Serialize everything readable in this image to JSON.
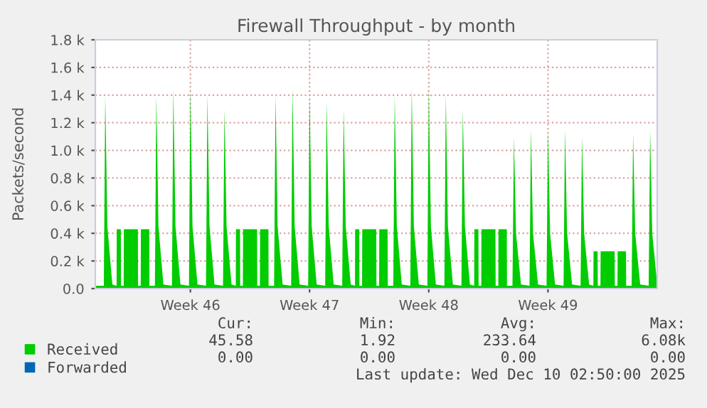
{
  "chart_data": {
    "type": "area",
    "title": "Firewall Throughput - by month",
    "ylabel": "Packets/second",
    "xlim": [
      "2025-11-07",
      "2025-12-10"
    ],
    "xticks": [
      {
        "value": "2025-11-12T14:00",
        "label": "Week 46"
      },
      {
        "value": "2025-11-19T14:00",
        "label": "Week 47"
      },
      {
        "value": "2025-11-26T14:00",
        "label": "Week 48"
      },
      {
        "value": "2025-12-03T14:00",
        "label": "Week 49"
      }
    ],
    "ylim": [
      0,
      1.8
    ],
    "yticks": [
      {
        "value": 0,
        "label": "0.0"
      },
      {
        "value": 0.2,
        "label": "0.2 k"
      },
      {
        "value": 0.4,
        "label": "0.4 k"
      },
      {
        "value": 0.6,
        "label": "0.6 k"
      },
      {
        "value": 0.8,
        "label": "0.8 k"
      },
      {
        "value": 1.0,
        "label": "1.0 k"
      },
      {
        "value": 1.2,
        "label": "1.2 k"
      },
      {
        "value": 1.4,
        "label": "1.4 k"
      },
      {
        "value": 1.6,
        "label": "1.6 k"
      },
      {
        "value": 1.8,
        "label": "1.8 k"
      }
    ],
    "grid": true,
    "legend": "bottom",
    "series": [
      {
        "name": "Received",
        "color": "#00cc00",
        "x": [
          "2025-11-07T00:00",
          "2025-11-07T12:00",
          "2025-11-07T14:00",
          "2025-11-07T17:00",
          "2025-11-08T00:00",
          "2025-11-08T06:00",
          "2025-11-08T06:15",
          "2025-11-08T12:00",
          "2025-11-08T12:15",
          "2025-11-08T16:00",
          "2025-11-08T16:15",
          "2025-11-09T12:00",
          "2025-11-09T12:15",
          "2025-11-09T16:00",
          "2025-11-09T16:15",
          "2025-11-10T04:00",
          "2025-11-10T04:15",
          "2025-11-10T12:00",
          "2025-11-10T14:00",
          "2025-11-10T17:00",
          "2025-11-11T00:00",
          "2025-11-11T12:00",
          "2025-11-11T14:00",
          "2025-11-11T17:00",
          "2025-11-12T00:00",
          "2025-11-12T12:00",
          "2025-11-12T14:00",
          "2025-11-12T17:00",
          "2025-11-13T00:00",
          "2025-11-13T12:00",
          "2025-11-13T14:00",
          "2025-11-13T17:00",
          "2025-11-14T00:00",
          "2025-11-14T12:00",
          "2025-11-14T14:00",
          "2025-11-14T17:00",
          "2025-11-15T00:00",
          "2025-11-15T06:00",
          "2025-11-15T06:15",
          "2025-11-15T12:00",
          "2025-11-15T12:15",
          "2025-11-15T16:00",
          "2025-11-15T16:15",
          "2025-11-16T12:00",
          "2025-11-16T12:15",
          "2025-11-16T16:00",
          "2025-11-16T16:15",
          "2025-11-17T04:00",
          "2025-11-17T04:15",
          "2025-11-17T12:00",
          "2025-11-17T14:00",
          "2025-11-17T17:00",
          "2025-11-18T00:00",
          "2025-11-18T12:00",
          "2025-11-18T14:00",
          "2025-11-18T17:00",
          "2025-11-19T00:00",
          "2025-11-19T12:00",
          "2025-11-19T14:00",
          "2025-11-19T17:00",
          "2025-11-20T00:00",
          "2025-11-20T12:00",
          "2025-11-20T14:00",
          "2025-11-20T17:00",
          "2025-11-21T00:00",
          "2025-11-21T12:00",
          "2025-11-21T14:00",
          "2025-11-21T17:00",
          "2025-11-22T00:00",
          "2025-11-22T06:00",
          "2025-11-22T06:15",
          "2025-11-22T12:00",
          "2025-11-22T12:15",
          "2025-11-22T16:00",
          "2025-11-22T16:15",
          "2025-11-23T12:00",
          "2025-11-23T12:15",
          "2025-11-23T16:00",
          "2025-11-23T16:15",
          "2025-11-24T04:00",
          "2025-11-24T04:15",
          "2025-11-24T12:00",
          "2025-11-24T14:00",
          "2025-11-24T17:00",
          "2025-11-25T00:00",
          "2025-11-25T12:00",
          "2025-11-25T14:00",
          "2025-11-25T17:00",
          "2025-11-26T00:00",
          "2025-11-26T12:00",
          "2025-11-26T14:00",
          "2025-11-26T17:00",
          "2025-11-27T00:00",
          "2025-11-27T12:00",
          "2025-11-27T14:00",
          "2025-11-27T17:00",
          "2025-11-28T00:00",
          "2025-11-28T12:00",
          "2025-11-28T14:00",
          "2025-11-28T17:00",
          "2025-11-29T00:00",
          "2025-11-29T06:00",
          "2025-11-29T06:15",
          "2025-11-29T12:00",
          "2025-11-29T12:15",
          "2025-11-29T16:00",
          "2025-11-29T16:15",
          "2025-11-30T12:00",
          "2025-11-30T12:15",
          "2025-11-30T16:00",
          "2025-11-30T16:15",
          "2025-12-01T04:00",
          "2025-12-01T04:15",
          "2025-12-01T12:00",
          "2025-12-01T14:00",
          "2025-12-01T17:00",
          "2025-12-02T00:00",
          "2025-12-02T12:00",
          "2025-12-02T14:00",
          "2025-12-02T17:00",
          "2025-12-03T00:00",
          "2025-12-03T12:00",
          "2025-12-03T14:00",
          "2025-12-03T17:00",
          "2025-12-04T00:00",
          "2025-12-04T12:00",
          "2025-12-04T14:00",
          "2025-12-04T17:00",
          "2025-12-05T00:00",
          "2025-12-05T12:00",
          "2025-12-05T14:00",
          "2025-12-05T17:00",
          "2025-12-06T00:00",
          "2025-12-06T06:00",
          "2025-12-06T06:15",
          "2025-12-06T12:00",
          "2025-12-06T12:15",
          "2025-12-06T16:00",
          "2025-12-06T16:15",
          "2025-12-07T12:00",
          "2025-12-07T12:15",
          "2025-12-07T16:00",
          "2025-12-07T16:15",
          "2025-12-08T04:00",
          "2025-12-08T04:15",
          "2025-12-08T12:00",
          "2025-12-08T14:00",
          "2025-12-08T17:00",
          "2025-12-09T00:00",
          "2025-12-09T12:00",
          "2025-12-09T14:00",
          "2025-12-09T17:00",
          "2025-12-10T00:00"
        ],
        "values": [
          0.02,
          0.02,
          1.4,
          0.45,
          0.03,
          0.02,
          0.43,
          0.43,
          0.02,
          0.02,
          0.43,
          0.43,
          0.02,
          0.02,
          0.43,
          0.43,
          0.02,
          0.02,
          1.4,
          0.45,
          0.03,
          0.02,
          1.45,
          0.45,
          0.03,
          0.02,
          1.45,
          0.45,
          0.03,
          0.02,
          1.4,
          0.45,
          0.03,
          0.02,
          1.3,
          0.45,
          0.03,
          0.02,
          0.43,
          0.43,
          0.02,
          0.02,
          0.43,
          0.43,
          0.02,
          0.02,
          0.43,
          0.43,
          0.02,
          0.02,
          1.4,
          0.45,
          0.03,
          0.02,
          1.45,
          0.45,
          0.03,
          0.02,
          1.4,
          0.45,
          0.03,
          0.02,
          1.35,
          0.45,
          0.03,
          0.02,
          1.3,
          0.45,
          0.03,
          0.02,
          0.43,
          0.43,
          0.02,
          0.02,
          0.43,
          0.43,
          0.02,
          0.02,
          0.43,
          0.43,
          0.02,
          0.02,
          1.4,
          0.45,
          0.03,
          0.02,
          1.45,
          0.45,
          0.03,
          0.02,
          1.45,
          0.45,
          0.03,
          0.02,
          1.4,
          0.45,
          0.03,
          0.02,
          1.3,
          0.45,
          0.03,
          0.02,
          0.43,
          0.43,
          0.02,
          0.02,
          0.43,
          0.43,
          0.02,
          0.02,
          0.43,
          0.43,
          0.02,
          0.02,
          1.1,
          0.4,
          0.03,
          0.02,
          1.15,
          0.4,
          0.03,
          0.02,
          1.15,
          0.4,
          0.03,
          0.02,
          1.15,
          0.4,
          0.03,
          0.02,
          1.1,
          0.4,
          0.03,
          0.02,
          0.27,
          0.27,
          0.02,
          0.02,
          0.27,
          0.27,
          0.02,
          0.02,
          0.27,
          0.27,
          0.02,
          0.02,
          1.12,
          0.4,
          0.03,
          0.02,
          1.15,
          0.4,
          0.03
        ]
      },
      {
        "name": "Forwarded",
        "color": "#0066b3",
        "type": "line"
      }
    ],
    "annotations": [
      "Cur:",
      "Min:",
      "Avg:",
      "Max:",
      "45.58",
      "1.92",
      "233.64",
      "6.08k",
      "0.00",
      "0.00",
      "0.00",
      "0.00",
      "Last update: Wed Dec 10 02:50:00 2025"
    ]
  }
}
